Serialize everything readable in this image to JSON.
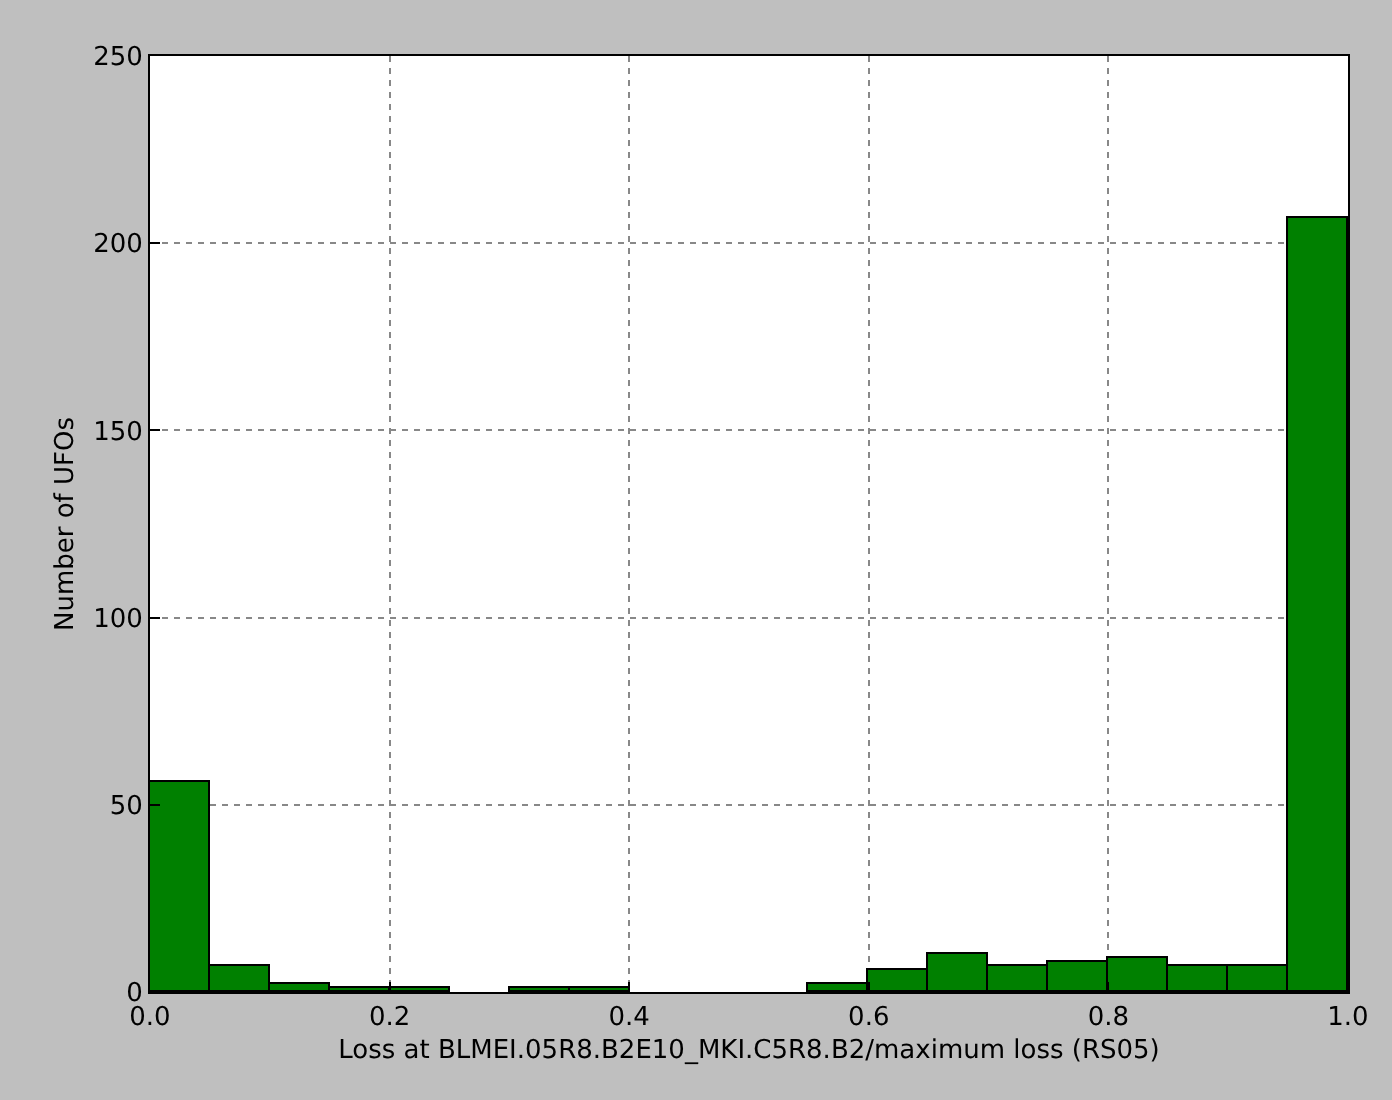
{
  "chart_data": {
    "type": "histogram",
    "xlabel": "Loss at BLMEI.05R8.B2E10_MKI.C5R8.B2/maximum loss (RS05)",
    "ylabel": "Number of UFOs",
    "bins": [
      0,
      0.05,
      0.1,
      0.15,
      0.2,
      0.25,
      0.3,
      0.35,
      0.4,
      0.45,
      0.5,
      0.55,
      0.6,
      0.65,
      0.7,
      0.75,
      0.8,
      0.85,
      0.9,
      0.95,
      1.0
    ],
    "values": [
      56,
      7,
      2,
      1,
      1,
      0,
      1,
      1,
      0,
      0,
      0,
      2,
      6,
      10,
      7,
      8,
      9,
      7,
      7,
      207
    ],
    "color": "#008000",
    "xlim": [
      0,
      1
    ],
    "xticks": [
      {
        "value": 0,
        "label": "0.0"
      },
      {
        "value": 0.2,
        "label": "0.2"
      },
      {
        "value": 0.4,
        "label": "0.4"
      },
      {
        "value": 0.6,
        "label": "0.6"
      },
      {
        "value": 0.8,
        "label": "0.8"
      },
      {
        "value": 1,
        "label": "1.0"
      }
    ],
    "ylim": [
      0,
      250
    ],
    "yticks": [
      0,
      50,
      100,
      150,
      200,
      250
    ],
    "grid": true
  }
}
